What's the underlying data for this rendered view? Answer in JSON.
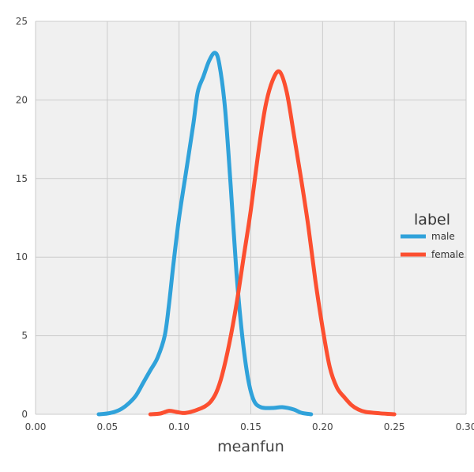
{
  "chart_data": {
    "type": "line",
    "title": "",
    "xlabel": "meanfun",
    "ylabel": "",
    "xlim": [
      0.0,
      0.3
    ],
    "ylim": [
      0,
      25
    ],
    "xticks": [
      "0.00",
      "0.05",
      "0.10",
      "0.15",
      "0.20",
      "0.25",
      "0.30"
    ],
    "yticks": [
      "0",
      "5",
      "10",
      "15",
      "20",
      "25"
    ],
    "grid": true,
    "background": "#f0f0f0",
    "grid_color": "#cbcbcb",
    "legend": {
      "title": "label",
      "position": "right"
    },
    "series": [
      {
        "name": "male",
        "color": "#30a2da",
        "points": [
          [
            0.044,
            0.0
          ],
          [
            0.05,
            0.05
          ],
          [
            0.055,
            0.15
          ],
          [
            0.06,
            0.35
          ],
          [
            0.065,
            0.7
          ],
          [
            0.07,
            1.2
          ],
          [
            0.075,
            2.0
          ],
          [
            0.08,
            2.8
          ],
          [
            0.085,
            3.6
          ],
          [
            0.09,
            5.0
          ],
          [
            0.093,
            7.0
          ],
          [
            0.096,
            9.5
          ],
          [
            0.1,
            12.5
          ],
          [
            0.105,
            15.5
          ],
          [
            0.11,
            18.5
          ],
          [
            0.113,
            20.5
          ],
          [
            0.117,
            21.5
          ],
          [
            0.121,
            22.5
          ],
          [
            0.125,
            23.0
          ],
          [
            0.128,
            22.3
          ],
          [
            0.132,
            19.5
          ],
          [
            0.136,
            14.5
          ],
          [
            0.14,
            9.0
          ],
          [
            0.144,
            5.0
          ],
          [
            0.148,
            2.3
          ],
          [
            0.152,
            0.9
          ],
          [
            0.157,
            0.45
          ],
          [
            0.165,
            0.4
          ],
          [
            0.172,
            0.45
          ],
          [
            0.18,
            0.3
          ],
          [
            0.185,
            0.1
          ],
          [
            0.192,
            0.0
          ]
        ]
      },
      {
        "name": "female",
        "color": "#fc4f30",
        "points": [
          [
            0.08,
            0.0
          ],
          [
            0.087,
            0.05
          ],
          [
            0.093,
            0.22
          ],
          [
            0.098,
            0.15
          ],
          [
            0.103,
            0.08
          ],
          [
            0.108,
            0.15
          ],
          [
            0.113,
            0.3
          ],
          [
            0.118,
            0.5
          ],
          [
            0.122,
            0.8
          ],
          [
            0.126,
            1.4
          ],
          [
            0.13,
            2.5
          ],
          [
            0.135,
            4.5
          ],
          [
            0.14,
            7.0
          ],
          [
            0.145,
            10.0
          ],
          [
            0.15,
            13.0
          ],
          [
            0.155,
            16.5
          ],
          [
            0.16,
            19.5
          ],
          [
            0.165,
            21.2
          ],
          [
            0.17,
            21.8
          ],
          [
            0.175,
            20.5
          ],
          [
            0.18,
            17.8
          ],
          [
            0.185,
            15.0
          ],
          [
            0.19,
            12.0
          ],
          [
            0.195,
            8.5
          ],
          [
            0.2,
            5.5
          ],
          [
            0.205,
            3.0
          ],
          [
            0.21,
            1.7
          ],
          [
            0.215,
            1.1
          ],
          [
            0.22,
            0.6
          ],
          [
            0.225,
            0.3
          ],
          [
            0.23,
            0.15
          ],
          [
            0.24,
            0.06
          ],
          [
            0.25,
            0.0
          ]
        ]
      }
    ]
  }
}
